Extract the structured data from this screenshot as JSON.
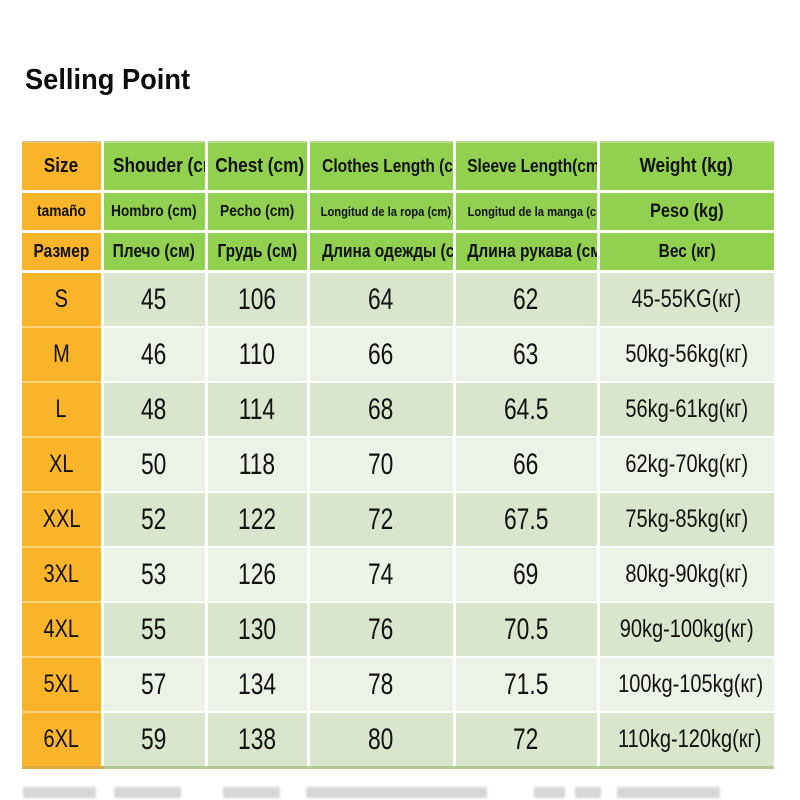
{
  "title": "Selling Point",
  "table": {
    "header_rows": [
      {
        "lang": "english",
        "cells": [
          "Size",
          "Shouder (cm)",
          "Chest (cm)",
          "Clothes Length (cm)",
          "Sleeve Length(cm)",
          "Weight (kg)"
        ]
      },
      {
        "lang": "spanish",
        "cells": [
          "tamaño",
          "Hombro (cm)",
          "Pecho (cm)",
          "Longitud de la ropa (cm)",
          "Longitud de la manga (cm)",
          "Peso (kg)"
        ]
      },
      {
        "lang": "russian",
        "cells": [
          "Размер",
          "Плечо (см)",
          "Грудь (см)",
          "Длина одежды (см)",
          "Длина рукава (см)",
          "Вес (кг)"
        ]
      }
    ],
    "rows": [
      [
        "S",
        "45",
        "106",
        "64",
        "62",
        "45-55KG(кг)"
      ],
      [
        "M",
        "46",
        "110",
        "66",
        "63",
        "50kg-56kg(кг)"
      ],
      [
        "L",
        "48",
        "114",
        "68",
        "64.5",
        "56kg-61kg(кг)"
      ],
      [
        "XL",
        "50",
        "118",
        "70",
        "66",
        "62kg-70kg(кг)"
      ],
      [
        "XXL",
        "52",
        "122",
        "72",
        "67.5",
        "75kg-85kg(кг)"
      ],
      [
        "3XL",
        "53",
        "126",
        "74",
        "69",
        "80kg-90kg(кг)"
      ],
      [
        "4XL",
        "55",
        "130",
        "76",
        "70.5",
        "90kg-100kg(кг)"
      ],
      [
        "5XL",
        "57",
        "134",
        "78",
        "71.5",
        "100kg-105kg(кг)"
      ],
      [
        "6XL",
        "59",
        "138",
        "80",
        "72",
        "110kg-120kg(кг)"
      ]
    ]
  },
  "colors": {
    "header_green": "#92d050",
    "size_column_gold": "#f9b42a",
    "row_green": "#d9e6cd",
    "row_light": "#ecf2e6"
  }
}
